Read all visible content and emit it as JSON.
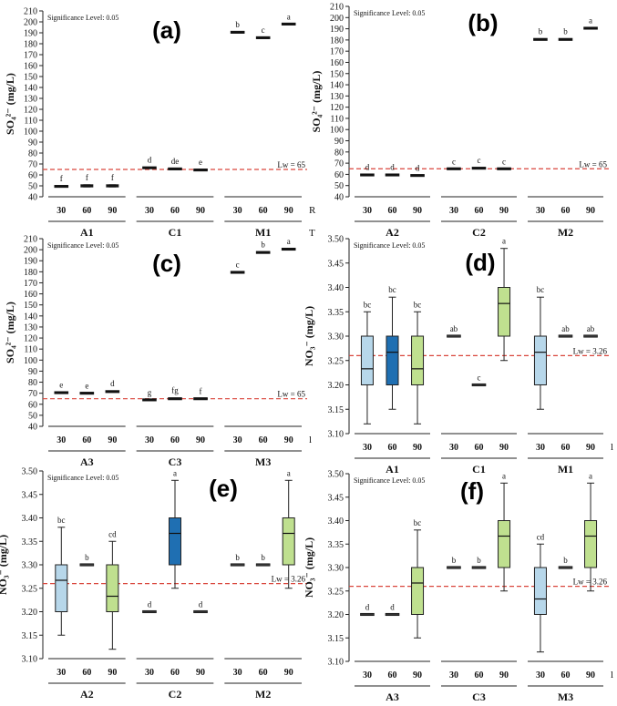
{
  "figure": {
    "significance_note": "Significance Level: 0.05",
    "colors": {
      "light_blue": "#b7d7ea",
      "dark_blue": "#1f6fb2",
      "light_green": "#bfe08f",
      "black_box": "#111111",
      "threshold_line": "#d9463c",
      "axis": "#222222"
    }
  },
  "chart_data": [
    {
      "panel": "(a)",
      "type": "box",
      "ylabel": "SO₄²⁻ (mg/L)",
      "ylim": [
        40,
        210
      ],
      "yticks": [
        40,
        50,
        60,
        70,
        80,
        90,
        100,
        110,
        120,
        130,
        140,
        150,
        160,
        170,
        180,
        190,
        200,
        210
      ],
      "threshold": {
        "value": 65,
        "label": "Lw = 65"
      },
      "trailing_label": "R",
      "under_axis_label": "T",
      "groups": [
        {
          "name": "A1",
          "boxes": [
            {
              "x": "30",
              "min": 49,
              "q1": 49,
              "median": 49.5,
              "q3": 50,
              "max": 50,
              "letter": "f",
              "color": "black_box"
            },
            {
              "x": "60",
              "min": 49,
              "q1": 49,
              "median": 50,
              "q3": 51,
              "max": 51,
              "letter": "f",
              "color": "black_box"
            },
            {
              "x": "90",
              "min": 49,
              "q1": 49,
              "median": 50,
              "q3": 51,
              "max": 51,
              "letter": "f",
              "color": "black_box"
            }
          ]
        },
        {
          "name": "C1",
          "boxes": [
            {
              "x": "30",
              "min": 66,
              "q1": 66,
              "median": 66.5,
              "q3": 67,
              "max": 67,
              "letter": "d",
              "color": "black_box"
            },
            {
              "x": "60",
              "min": 65,
              "q1": 65,
              "median": 65.5,
              "q3": 66,
              "max": 66,
              "letter": "de",
              "color": "black_box"
            },
            {
              "x": "90",
              "min": 64,
              "q1": 64,
              "median": 64.5,
              "q3": 65,
              "max": 65,
              "letter": "e",
              "color": "black_box"
            }
          ]
        },
        {
          "name": "M1",
          "boxes": [
            {
              "x": "30",
              "min": 189,
              "q1": 190,
              "median": 190.5,
              "q3": 191,
              "max": 191,
              "letter": "b",
              "color": "black_box"
            },
            {
              "x": "60",
              "min": 185,
              "q1": 185,
              "median": 185.5,
              "q3": 186,
              "max": 186,
              "letter": "c",
              "color": "black_box"
            },
            {
              "x": "90",
              "min": 198,
              "q1": 198,
              "median": 198,
              "q3": 198,
              "max": 198,
              "letter": "a",
              "color": "black_box"
            }
          ]
        }
      ]
    },
    {
      "panel": "(b)",
      "type": "box",
      "ylabel": "SO₄²⁻ (mg/L)",
      "ylim": [
        40,
        210
      ],
      "yticks": [
        40,
        50,
        60,
        70,
        80,
        90,
        100,
        110,
        120,
        130,
        140,
        150,
        160,
        170,
        180,
        190,
        200,
        210
      ],
      "threshold": {
        "value": 65,
        "label": "Lw = 65"
      },
      "groups": [
        {
          "name": "A2",
          "boxes": [
            {
              "x": "30",
              "min": 59,
              "q1": 59,
              "median": 59.5,
              "q3": 60,
              "max": 60,
              "letter": "d",
              "color": "black_box"
            },
            {
              "x": "60",
              "min": 59,
              "q1": 59,
              "median": 59.5,
              "q3": 60,
              "max": 60,
              "letter": "d",
              "color": "black_box"
            },
            {
              "x": "90",
              "min": 59,
              "q1": 59,
              "median": 59,
              "q3": 59,
              "max": 59,
              "letter": "d",
              "color": "black_box"
            }
          ]
        },
        {
          "name": "C2",
          "boxes": [
            {
              "x": "30",
              "min": 65,
              "q1": 65,
              "median": 65,
              "q3": 65,
              "max": 65,
              "letter": "c",
              "color": "black_box"
            },
            {
              "x": "60",
              "min": 65,
              "q1": 65,
              "median": 65.5,
              "q3": 66,
              "max": 66,
              "letter": "c",
              "color": "black_box"
            },
            {
              "x": "90",
              "min": 65,
              "q1": 65,
              "median": 65,
              "q3": 65,
              "max": 65,
              "letter": "c",
              "color": "black_box"
            }
          ]
        },
        {
          "name": "M2",
          "boxes": [
            {
              "x": "30",
              "min": 180,
              "q1": 180,
              "median": 180.5,
              "q3": 181,
              "max": 181,
              "letter": "b",
              "color": "black_box"
            },
            {
              "x": "60",
              "min": 180,
              "q1": 180,
              "median": 180.5,
              "q3": 181,
              "max": 181,
              "letter": "b",
              "color": "black_box"
            },
            {
              "x": "90",
              "min": 190,
              "q1": 190,
              "median": 190.5,
              "q3": 191,
              "max": 191,
              "letter": "a",
              "color": "black_box"
            }
          ]
        }
      ]
    },
    {
      "panel": "(c)",
      "type": "box",
      "ylabel": "SO₄²⁻ (mg/L)",
      "ylim": [
        40,
        210
      ],
      "yticks": [
        40,
        50,
        60,
        70,
        80,
        90,
        100,
        110,
        120,
        130,
        140,
        150,
        160,
        170,
        180,
        190,
        200,
        210
      ],
      "threshold": {
        "value": 65,
        "label": "Lw = 65"
      },
      "trailing_label": "l",
      "groups": [
        {
          "name": "A3",
          "boxes": [
            {
              "x": "30",
              "min": 70,
              "q1": 70,
              "median": 70.5,
              "q3": 71,
              "max": 71,
              "letter": "e",
              "color": "black_box"
            },
            {
              "x": "60",
              "min": 70,
              "q1": 70,
              "median": 70,
              "q3": 70,
              "max": 70,
              "letter": "e",
              "color": "black_box"
            },
            {
              "x": "90",
              "min": 71,
              "q1": 71,
              "median": 71.5,
              "q3": 72,
              "max": 72,
              "letter": "d",
              "color": "black_box"
            }
          ]
        },
        {
          "name": "C3",
          "boxes": [
            {
              "x": "30",
              "min": 64,
              "q1": 64,
              "median": 64,
              "q3": 64,
              "max": 64,
              "letter": "g",
              "color": "black_box"
            },
            {
              "x": "60",
              "min": 65,
              "q1": 65,
              "median": 65,
              "q3": 66,
              "max": 66,
              "letter": "fg",
              "color": "black_box"
            },
            {
              "x": "90",
              "min": 65,
              "q1": 65,
              "median": 65,
              "q3": 65,
              "max": 65,
              "letter": "f",
              "color": "black_box"
            }
          ]
        },
        {
          "name": "M3",
          "boxes": [
            {
              "x": "30",
              "min": 179,
              "q1": 179,
              "median": 179.5,
              "q3": 180,
              "max": 180,
              "letter": "c",
              "color": "black_box"
            },
            {
              "x": "60",
              "min": 197,
              "q1": 197,
              "median": 197.5,
              "q3": 198,
              "max": 198,
              "letter": "b",
              "color": "black_box"
            },
            {
              "x": "90",
              "min": 200,
              "q1": 200,
              "median": 200.5,
              "q3": 201,
              "max": 201,
              "letter": "a",
              "color": "black_box"
            }
          ]
        }
      ]
    },
    {
      "panel": "(d)",
      "type": "box",
      "ylabel": "NO₃⁻ (mg/L)",
      "ylim": [
        3.1,
        3.5
      ],
      "yticks": [
        3.1,
        3.15,
        3.2,
        3.25,
        3.3,
        3.35,
        3.4,
        3.45,
        3.5
      ],
      "threshold": {
        "value": 3.26,
        "label": "Lw = 3.26"
      },
      "trailing_label": "l",
      "groups": [
        {
          "name": "A1",
          "boxes": [
            {
              "x": "30",
              "min": 3.12,
              "q1": 3.2,
              "median": 3.233,
              "q3": 3.3,
              "max": 3.35,
              "letter": "bc",
              "color": "light_blue"
            },
            {
              "x": "60",
              "min": 3.15,
              "q1": 3.2,
              "median": 3.267,
              "q3": 3.3,
              "max": 3.38,
              "letter": "bc",
              "color": "dark_blue"
            },
            {
              "x": "90",
              "min": 3.12,
              "q1": 3.2,
              "median": 3.233,
              "q3": 3.3,
              "max": 3.35,
              "letter": "bc",
              "color": "light_green"
            }
          ]
        },
        {
          "name": "C1",
          "boxes": [
            {
              "x": "30",
              "min": 3.3,
              "q1": 3.3,
              "median": 3.3,
              "q3": 3.3,
              "max": 3.3,
              "letter": "ab",
              "color": "light_blue"
            },
            {
              "x": "60",
              "min": 3.2,
              "q1": 3.2,
              "median": 3.2,
              "q3": 3.2,
              "max": 3.2,
              "letter": "c",
              "color": "dark_blue"
            },
            {
              "x": "90",
              "min": 3.25,
              "q1": 3.3,
              "median": 3.367,
              "q3": 3.4,
              "max": 3.48,
              "letter": "a",
              "color": "light_green"
            }
          ]
        },
        {
          "name": "M1",
          "boxes": [
            {
              "x": "30",
              "min": 3.15,
              "q1": 3.2,
              "median": 3.267,
              "q3": 3.3,
              "max": 3.38,
              "letter": "bc",
              "color": "light_blue"
            },
            {
              "x": "60",
              "min": 3.3,
              "q1": 3.3,
              "median": 3.3,
              "q3": 3.3,
              "max": 3.3,
              "letter": "ab",
              "color": "dark_blue"
            },
            {
              "x": "90",
              "min": 3.3,
              "q1": 3.3,
              "median": 3.3,
              "q3": 3.3,
              "max": 3.3,
              "letter": "ab",
              "color": "light_green"
            }
          ]
        }
      ]
    },
    {
      "panel": "(e)",
      "type": "box",
      "ylabel": "NO₃⁻ (mg/L)",
      "ylim": [
        3.1,
        3.5
      ],
      "yticks": [
        3.1,
        3.15,
        3.2,
        3.25,
        3.3,
        3.35,
        3.4,
        3.45,
        3.5
      ],
      "threshold": {
        "value": 3.26,
        "label": "Lw = 3.26"
      },
      "groups": [
        {
          "name": "A2",
          "boxes": [
            {
              "x": "30",
              "min": 3.15,
              "q1": 3.2,
              "median": 3.267,
              "q3": 3.3,
              "max": 3.38,
              "letter": "bc",
              "color": "light_blue"
            },
            {
              "x": "60",
              "min": 3.3,
              "q1": 3.3,
              "median": 3.3,
              "q3": 3.3,
              "max": 3.3,
              "letter": "b",
              "color": "light_blue"
            },
            {
              "x": "90",
              "min": 3.12,
              "q1": 3.2,
              "median": 3.233,
              "q3": 3.3,
              "max": 3.35,
              "letter": "cd",
              "color": "light_green"
            }
          ]
        },
        {
          "name": "C2",
          "boxes": [
            {
              "x": "30",
              "min": 3.2,
              "q1": 3.2,
              "median": 3.2,
              "q3": 3.2,
              "max": 3.2,
              "letter": "d",
              "color": "light_blue"
            },
            {
              "x": "60",
              "min": 3.25,
              "q1": 3.3,
              "median": 3.367,
              "q3": 3.4,
              "max": 3.48,
              "letter": "a",
              "color": "dark_blue"
            },
            {
              "x": "90",
              "min": 3.2,
              "q1": 3.2,
              "median": 3.2,
              "q3": 3.2,
              "max": 3.2,
              "letter": "d",
              "color": "light_green"
            }
          ]
        },
        {
          "name": "M2",
          "boxes": [
            {
              "x": "30",
              "min": 3.3,
              "q1": 3.3,
              "median": 3.3,
              "q3": 3.3,
              "max": 3.3,
              "letter": "b",
              "color": "light_blue"
            },
            {
              "x": "60",
              "min": 3.3,
              "q1": 3.3,
              "median": 3.3,
              "q3": 3.3,
              "max": 3.3,
              "letter": "b",
              "color": "dark_blue"
            },
            {
              "x": "90",
              "min": 3.25,
              "q1": 3.3,
              "median": 3.367,
              "q3": 3.4,
              "max": 3.48,
              "letter": "a",
              "color": "light_green"
            }
          ]
        }
      ]
    },
    {
      "panel": "(f)",
      "type": "box",
      "ylabel": "NO₃⁻ (mg/L)",
      "ylim": [
        3.1,
        3.5
      ],
      "yticks": [
        3.1,
        3.15,
        3.2,
        3.25,
        3.3,
        3.35,
        3.4,
        3.45,
        3.5
      ],
      "threshold": {
        "value": 3.26,
        "label": "Lw = 3.26"
      },
      "trailing_label": "l",
      "groups": [
        {
          "name": "A3",
          "boxes": [
            {
              "x": "30",
              "min": 3.2,
              "q1": 3.2,
              "median": 3.2,
              "q3": 3.2,
              "max": 3.2,
              "letter": "d",
              "color": "light_blue"
            },
            {
              "x": "60",
              "min": 3.2,
              "q1": 3.2,
              "median": 3.2,
              "q3": 3.2,
              "max": 3.2,
              "letter": "d",
              "color": "light_blue"
            },
            {
              "x": "90",
              "min": 3.15,
              "q1": 3.2,
              "median": 3.267,
              "q3": 3.3,
              "max": 3.38,
              "letter": "bc",
              "color": "light_green"
            }
          ]
        },
        {
          "name": "C3",
          "boxes": [
            {
              "x": "30",
              "min": 3.3,
              "q1": 3.3,
              "median": 3.3,
              "q3": 3.3,
              "max": 3.3,
              "letter": "b",
              "color": "light_blue"
            },
            {
              "x": "60",
              "min": 3.3,
              "q1": 3.3,
              "median": 3.3,
              "q3": 3.3,
              "max": 3.3,
              "letter": "b",
              "color": "light_blue"
            },
            {
              "x": "90",
              "min": 3.25,
              "q1": 3.3,
              "median": 3.367,
              "q3": 3.4,
              "max": 3.48,
              "letter": "a",
              "color": "light_green"
            }
          ]
        },
        {
          "name": "M3",
          "boxes": [
            {
              "x": "30",
              "min": 3.12,
              "q1": 3.2,
              "median": 3.233,
              "q3": 3.3,
              "max": 3.35,
              "letter": "cd",
              "color": "light_blue"
            },
            {
              "x": "60",
              "min": 3.3,
              "q1": 3.3,
              "median": 3.3,
              "q3": 3.3,
              "max": 3.3,
              "letter": "b",
              "color": "light_blue"
            },
            {
              "x": "90",
              "min": 3.25,
              "q1": 3.3,
              "median": 3.367,
              "q3": 3.4,
              "max": 3.48,
              "letter": "a",
              "color": "light_green"
            }
          ]
        }
      ]
    }
  ]
}
